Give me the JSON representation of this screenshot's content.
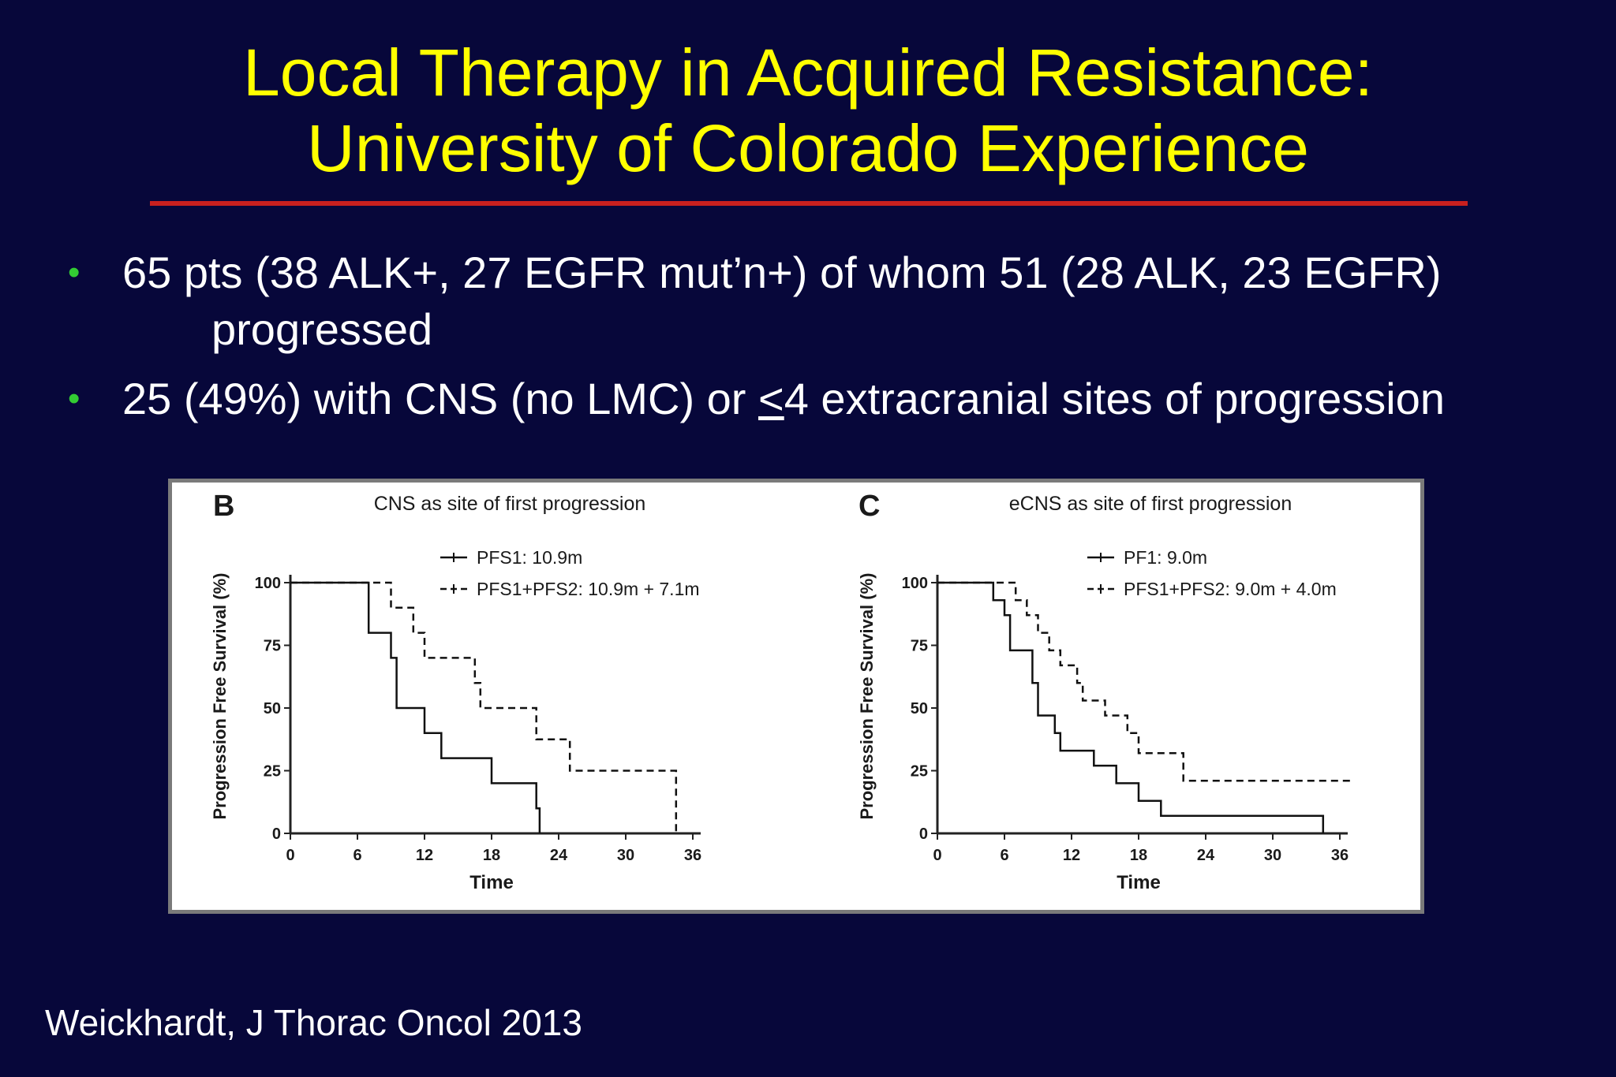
{
  "slide": {
    "title_line1": "Local Therapy in Acquired Resistance:",
    "title_line2": "University of Colorado Experience",
    "bullet1_line1": "65 pts (38 ALK+, 27 EGFR mut’n+) of whom 51 (28 ALK, 23 EGFR)",
    "bullet1_line2": "progressed",
    "bullet2_pre": "25 (49%) with CNS (no LMC) or ",
    "bullet2_underlined": "<",
    "bullet2_post": "4 extracranial sites of progression",
    "bullet_symbol": "•",
    "citation": "Weickhardt, J Thorac Oncol 2013"
  },
  "colors": {
    "background": "#07073a",
    "title": "#ffff00",
    "rule": "#c8201e",
    "bullet": "#33cc33",
    "text": "#ffffff"
  },
  "chart_data": [
    {
      "type": "line",
      "panel": "B",
      "title": "CNS as site of first progression",
      "xlabel": "Time",
      "ylabel": "Progression Free Survival (%)",
      "xlim": [
        0,
        36
      ],
      "ylim": [
        0,
        100
      ],
      "xticks": [
        "0",
        "6",
        "12",
        "18",
        "24",
        "30",
        "36"
      ],
      "yticks": [
        "0",
        "25",
        "50",
        "75",
        "100"
      ],
      "legend_position": "top-right",
      "series": [
        {
          "name": "PFS1: 10.9m",
          "style": "solid",
          "x": [
            0,
            7,
            7,
            9,
            9,
            9.5,
            9.5,
            12,
            12,
            13.5,
            13.5,
            18,
            18,
            22,
            22,
            22.3,
            22.3
          ],
          "y": [
            100,
            100,
            80,
            80,
            70,
            70,
            50,
            50,
            40,
            40,
            30,
            30,
            20,
            20,
            10,
            10,
            0
          ]
        },
        {
          "name": "PFS1+PFS2: 10.9m + 7.1m",
          "style": "dashed",
          "x": [
            0,
            9,
            9,
            11,
            11,
            12,
            12,
            16.5,
            16.5,
            17,
            17,
            22,
            22,
            25,
            25,
            34.5,
            34.5
          ],
          "y": [
            100,
            100,
            90,
            90,
            80,
            80,
            70,
            70,
            60,
            60,
            50,
            50,
            37.5,
            37.5,
            25,
            25,
            0
          ]
        }
      ]
    },
    {
      "type": "line",
      "panel": "C",
      "title": "eCNS as site of first progression",
      "xlabel": "Time",
      "ylabel": "Progression Free Survival (%)",
      "xlim": [
        0,
        36
      ],
      "ylim": [
        0,
        100
      ],
      "xticks": [
        "0",
        "6",
        "12",
        "18",
        "24",
        "30",
        "36"
      ],
      "yticks": [
        "0",
        "25",
        "50",
        "75",
        "100"
      ],
      "legend_position": "top-right",
      "series": [
        {
          "name": "PF1: 9.0m",
          "style": "solid",
          "x": [
            0,
            5,
            5,
            6,
            6,
            6.5,
            6.5,
            8.5,
            8.5,
            9,
            9,
            10.5,
            10.5,
            11,
            11,
            14,
            14,
            16,
            16,
            18,
            18,
            20,
            20,
            24,
            24,
            34.5,
            34.5
          ],
          "y": [
            100,
            100,
            93,
            93,
            87,
            87,
            73,
            73,
            60,
            60,
            47,
            47,
            40,
            40,
            33,
            33,
            27,
            27,
            20,
            20,
            13,
            13,
            7,
            7,
            7,
            7,
            0
          ]
        },
        {
          "name": "PFS1+PFS2: 9.0m + 4.0m",
          "style": "dashed",
          "x": [
            0,
            7,
            7,
            8,
            8,
            9,
            9,
            10,
            10,
            11,
            11,
            12.5,
            12.5,
            13,
            13,
            15,
            15,
            17,
            17,
            18,
            18,
            22,
            22,
            37
          ],
          "y": [
            100,
            100,
            93,
            93,
            87,
            87,
            80,
            80,
            73,
            73,
            67,
            67,
            60,
            60,
            53,
            53,
            47,
            47,
            40,
            40,
            32,
            32,
            21,
            21
          ]
        }
      ]
    }
  ]
}
